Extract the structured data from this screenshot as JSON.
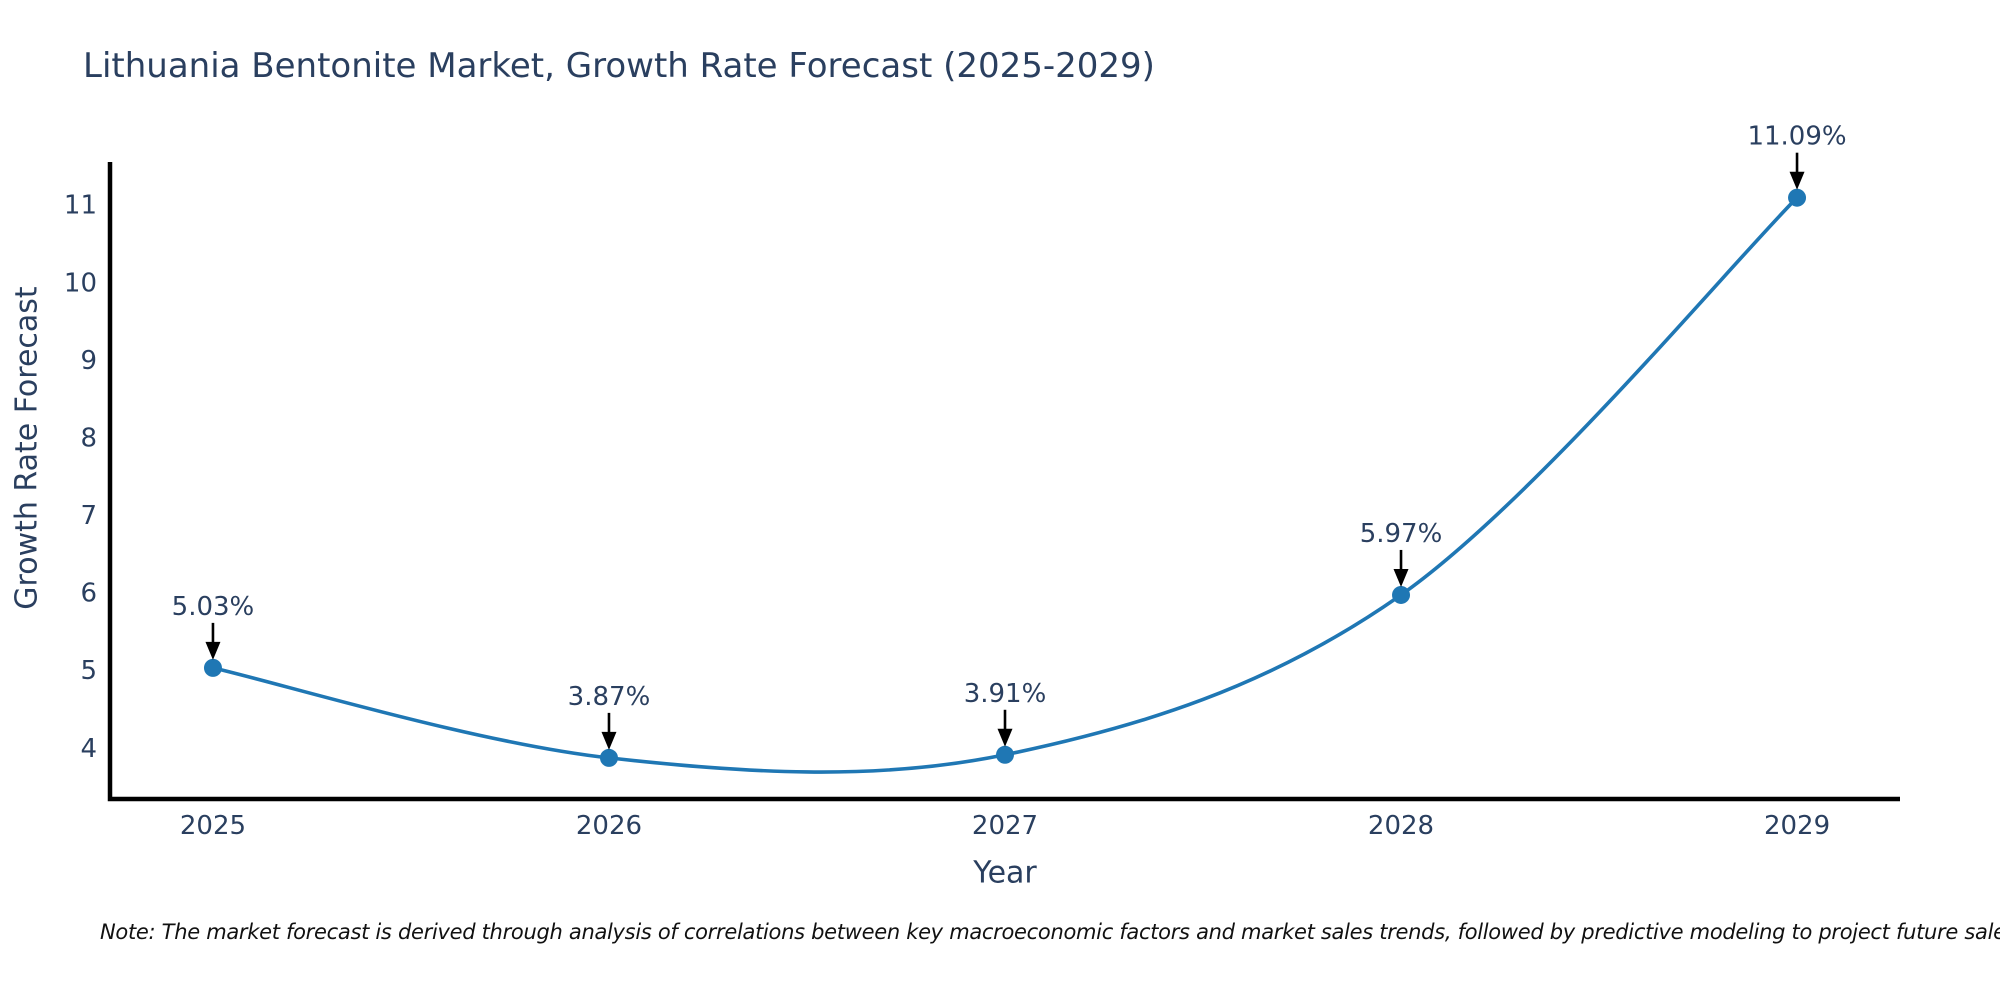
{
  "chart_data": {
    "type": "line",
    "title": "Lithuania Bentonite Market, Growth Rate Forecast (2025-2029)",
    "xlabel": "Year",
    "ylabel": "Growth Rate Forecast",
    "x": [
      2025,
      2026,
      2027,
      2028,
      2029
    ],
    "series": [
      {
        "name": "Growth Rate Forecast",
        "values": [
          5.03,
          3.87,
          3.91,
          5.97,
          11.09
        ]
      }
    ],
    "point_labels": [
      "5.03%",
      "3.87%",
      "3.91%",
      "5.97%",
      "11.09%"
    ],
    "xticks": [
      "2025",
      "2026",
      "2027",
      "2028",
      "2029"
    ],
    "yticks": [
      4,
      5,
      6,
      7,
      8,
      9,
      10,
      11
    ],
    "xlim": [
      2024.74,
      2029.26
    ],
    "ylim": [
      3.34,
      11.55
    ],
    "line_shape": "spline",
    "grid": false,
    "legend_position": "none",
    "colors": {
      "line": "#1f77b4",
      "marker": "#1f77b4",
      "axis_line": "#000000",
      "title_text": "#2a3f5f",
      "tick_text": "#2a3f5f",
      "annotation_text": "#2a3f5f",
      "arrow": "#000000"
    },
    "note": "Note: The market forecast is derived through analysis of correlations between key macroeconomic factors and market sales trends, followed by predictive modeling to project future sales."
  }
}
